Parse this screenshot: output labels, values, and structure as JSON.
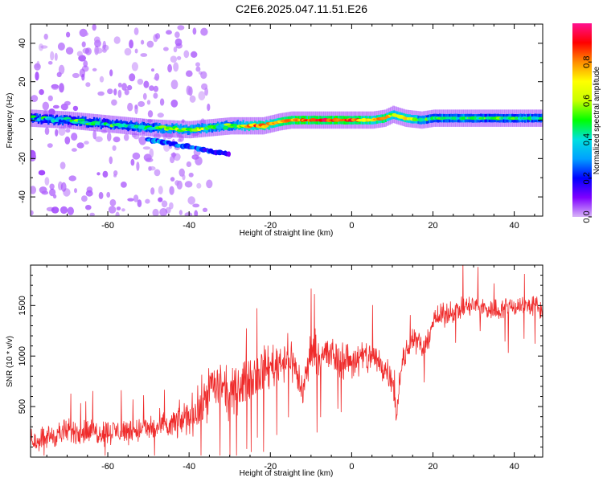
{
  "title": "C2E6.2025.047.11.51.E26",
  "colors": {
    "spectrum_stops": [
      "#d8b4f8",
      "#7f00ff",
      "#0000ff",
      "#00a0ff",
      "#00e0e0",
      "#00ff00",
      "#c8ff00",
      "#ffff00",
      "#ff8c00",
      "#ff0000",
      "#ff1090"
    ],
    "snr_line": "#ef2b2b"
  },
  "chart_data": [
    {
      "type": "heatmap",
      "xlabel": "Height of straight line (km)",
      "ylabel": "Frequency (Hz)",
      "xlim": [
        -79,
        47
      ],
      "ylim": [
        -50,
        50
      ],
      "xticks": [
        -60,
        -40,
        -20,
        0,
        20,
        40
      ],
      "yticks": [
        -40,
        -20,
        0,
        20,
        40
      ],
      "colorbar": {
        "label": "Normalized spectral amplitude",
        "range": [
          0,
          1
        ],
        "ticks": [
          "0.0",
          "0.2",
          "0.4",
          "0.6",
          "0.8"
        ]
      },
      "ridge": {
        "x": [
          -79,
          -70,
          -60,
          -50,
          -40,
          -30,
          -22,
          -18,
          -15,
          -10,
          0,
          5,
          8,
          10,
          13,
          17,
          20,
          30,
          40,
          47
        ],
        "frequency_hz": [
          1,
          0,
          -2,
          -4,
          -5,
          -3,
          -3,
          -1,
          0,
          0,
          0,
          0,
          1,
          3,
          1,
          0,
          1,
          1,
          1,
          1
        ],
        "amplitude": [
          0.35,
          0.4,
          0.4,
          0.45,
          0.55,
          0.5,
          0.8,
          0.75,
          0.85,
          0.85,
          0.85,
          0.7,
          0.8,
          0.6,
          0.75,
          0.5,
          0.45,
          0.45,
          0.45,
          0.45
        ]
      },
      "secondary_branch": {
        "x": [
          -50,
          -45,
          -40,
          -35,
          -30
        ],
        "frequency_hz": [
          -10,
          -12,
          -14,
          -16,
          -18
        ],
        "amplitude": [
          0.3,
          0.35,
          0.3,
          0.25,
          0.2
        ]
      },
      "noise_region_x": [
        -79,
        -35
      ]
    },
    {
      "type": "line",
      "xlabel": "Height of straight line (km)",
      "ylabel": "SNR (10 * v/v)",
      "xlim": [
        -79,
        47
      ],
      "ylim": [
        0,
        1900
      ],
      "xticks": [
        -60,
        -40,
        -20,
        0,
        20,
        40
      ],
      "yticks": [
        500,
        1000,
        1500
      ],
      "series": [
        {
          "x": [
            -79,
            -75,
            -70,
            -65,
            -60,
            -55,
            -50,
            -45,
            -40,
            -37,
            -35,
            -32,
            -30,
            -25,
            -20,
            -15,
            -12,
            -10,
            -5,
            0,
            5,
            10,
            11,
            12,
            15,
            18,
            20,
            25,
            30,
            35,
            40,
            45,
            47
          ],
          "y": [
            150,
            200,
            250,
            250,
            250,
            260,
            280,
            300,
            400,
            500,
            700,
            700,
            600,
            800,
            900,
            1000,
            650,
            1050,
            1000,
            950,
            1000,
            800,
            400,
            850,
            1200,
            1050,
            1350,
            1450,
            1500,
            1450,
            1500,
            1500,
            1450
          ],
          "noise_amplitude": [
            150,
            160,
            170,
            170,
            170,
            170,
            170,
            200,
            250,
            300,
            350,
            300,
            300,
            300,
            300,
            280,
            250,
            280,
            280,
            250,
            250,
            200,
            150,
            200,
            180,
            150,
            150,
            150,
            150,
            150,
            150,
            150,
            150
          ]
        }
      ]
    }
  ]
}
